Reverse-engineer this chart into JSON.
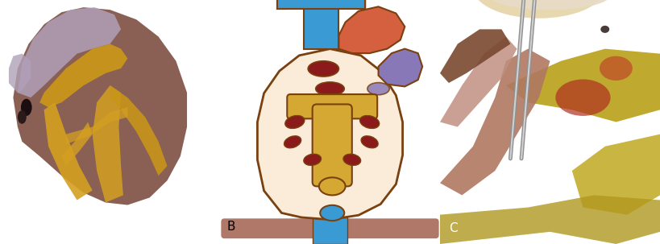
{
  "figsize": [
    8.19,
    3.03
  ],
  "dpi": 100,
  "panel_A": {
    "bg": "#6a6a5a",
    "heart_lavender": "#9b8fa0",
    "heart_brown": "#8a6055",
    "fat_yellow": "#c8951a",
    "fat_yellow2": "#d4a020",
    "dark_groove": "#5a3a2a",
    "atrial_pale": "#b0a0b8",
    "bg_dark": "#585850"
  },
  "panel_B": {
    "bg": "#ffffff",
    "heart_fill": "#faecd8",
    "outline": "#7a4010",
    "blue": "#3a9ad4",
    "red_dark": "#8b1a1a",
    "orange": "#d46040",
    "purple": "#8878b8",
    "gold": "#d4a832",
    "diaphragm": "#b07868",
    "label": "black"
  },
  "panel_C": {
    "bg": "#a07840",
    "fat_yellow": "#c8a020",
    "tissue_brown": "#8a5535",
    "tissue_pink": "#c08060",
    "tissue_dark": "#6a3a20",
    "forceps": "#b8b8b8",
    "top_cream": "#e8d8b0"
  },
  "label_fontsize": 11
}
